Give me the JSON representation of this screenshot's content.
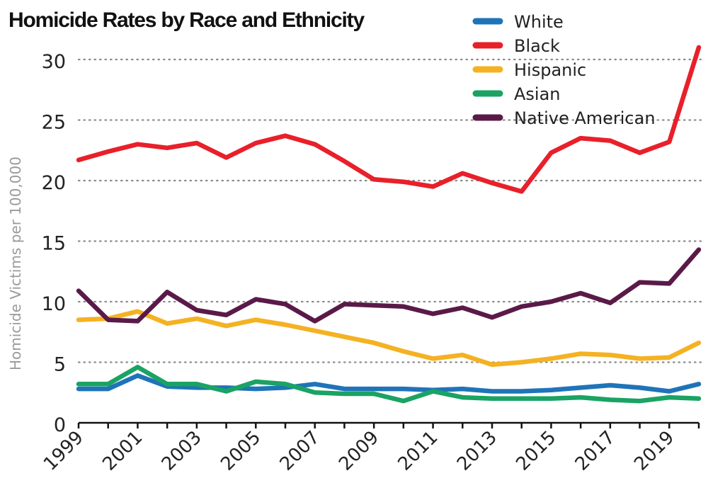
{
  "chart_data": {
    "type": "line",
    "title": "Homicide Rates by Race and Ethnicity",
    "ylabel": "Homicide Victims per 100,000",
    "xlabel": "",
    "x": [
      1999,
      2000,
      2001,
      2002,
      2003,
      2004,
      2005,
      2006,
      2007,
      2008,
      2009,
      2010,
      2011,
      2012,
      2013,
      2014,
      2015,
      2016,
      2017,
      2018,
      2019,
      2020
    ],
    "x_tick_labels": [
      "1999",
      "2001",
      "2003",
      "2005",
      "2007",
      "2009",
      "2011",
      "2013",
      "2015",
      "2017",
      "2019"
    ],
    "y_ticks": [
      0,
      5,
      10,
      15,
      20,
      25,
      30
    ],
    "ylim": [
      0,
      31.5
    ],
    "xlim": [
      1999,
      2020
    ],
    "grid": "horizontal dotted",
    "legend_position": "top-right",
    "series": [
      {
        "name": "White",
        "color": "#1f74b8",
        "values": [
          2.8,
          2.8,
          3.9,
          3.0,
          2.9,
          2.9,
          2.8,
          2.9,
          3.2,
          2.8,
          2.8,
          2.8,
          2.7,
          2.8,
          2.6,
          2.6,
          2.7,
          2.9,
          3.1,
          2.9,
          2.6,
          3.2
        ]
      },
      {
        "name": "Black",
        "color": "#e8202a",
        "values": [
          21.7,
          22.4,
          23.0,
          22.7,
          23.1,
          21.9,
          23.1,
          23.7,
          23.0,
          21.6,
          20.1,
          19.9,
          19.5,
          20.6,
          19.8,
          19.1,
          22.3,
          23.5,
          23.3,
          22.3,
          23.2,
          31.0
        ]
      },
      {
        "name": "Hispanic",
        "color": "#f4b223",
        "values": [
          8.5,
          8.6,
          9.2,
          8.2,
          8.6,
          8.0,
          8.5,
          8.1,
          7.6,
          7.1,
          6.6,
          5.9,
          5.3,
          5.6,
          4.8,
          5.0,
          5.3,
          5.7,
          5.6,
          5.3,
          5.4,
          6.6
        ]
      },
      {
        "name": "Asian",
        "color": "#1aa363",
        "values": [
          3.2,
          3.2,
          4.6,
          3.2,
          3.2,
          2.6,
          3.4,
          3.2,
          2.5,
          2.4,
          2.4,
          1.8,
          2.6,
          2.1,
          2.0,
          2.0,
          2.0,
          2.1,
          1.9,
          1.8,
          2.1,
          2.0
        ]
      },
      {
        "name": "Native American",
        "color": "#5a1a48",
        "values": [
          10.9,
          8.5,
          8.4,
          10.8,
          9.3,
          8.9,
          10.2,
          9.8,
          8.4,
          9.8,
          9.7,
          9.6,
          9.0,
          9.5,
          8.7,
          9.6,
          10.0,
          10.7,
          9.9,
          11.6,
          11.5,
          14.3
        ]
      }
    ]
  }
}
